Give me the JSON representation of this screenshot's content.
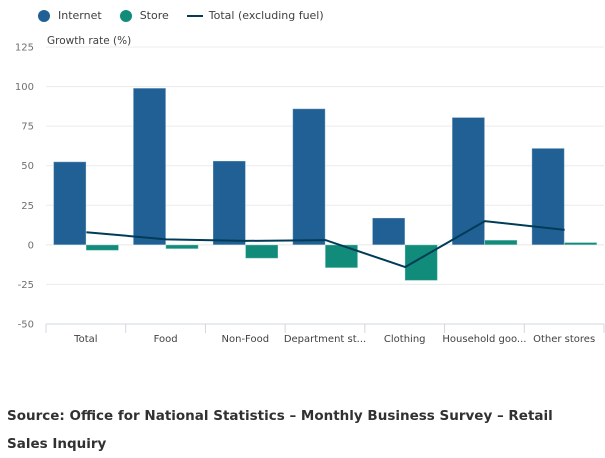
{
  "chart_data": {
    "type": "bar",
    "title": "",
    "xlabel": "",
    "ylabel": "Growth rate (%)",
    "ylim": [
      -50,
      125
    ],
    "yticks": [
      125,
      100,
      75,
      50,
      25,
      0,
      -25,
      -50
    ],
    "ytick_labels": [
      "125",
      "100",
      "75",
      "50",
      "25",
      "0",
      "-25",
      "-50"
    ],
    "grid": true,
    "legend_position": "top-left",
    "categories": [
      "Total",
      "Food",
      "Non-Food",
      "Department st...",
      "Clothing",
      "Household goo...",
      "Other stores"
    ],
    "series": [
      {
        "name": "Internet",
        "kind": "bar",
        "color": "#206095",
        "values": [
          52.5,
          99,
          53,
          86,
          17,
          80.5,
          61
        ]
      },
      {
        "name": "Store",
        "kind": "bar",
        "color": "#118c7b",
        "values": [
          -3.5,
          -2.5,
          -8.5,
          -14.5,
          -22.5,
          3,
          1.5
        ]
      },
      {
        "name": "Total (excluding fuel)",
        "kind": "line",
        "color": "#003c57",
        "values": [
          8,
          3.5,
          2.5,
          3,
          -14,
          15,
          9.5
        ]
      }
    ]
  },
  "legend": [
    {
      "label": "Internet",
      "color": "#206095",
      "marker": "dot"
    },
    {
      "label": "Store",
      "color": "#118c7b",
      "marker": "dot"
    },
    {
      "label": "Total (excluding fuel)",
      "color": "#003c57",
      "marker": "line"
    }
  ],
  "source": "Source: Office for National Statistics – Monthly Business Survey – Retail Sales Inquiry"
}
